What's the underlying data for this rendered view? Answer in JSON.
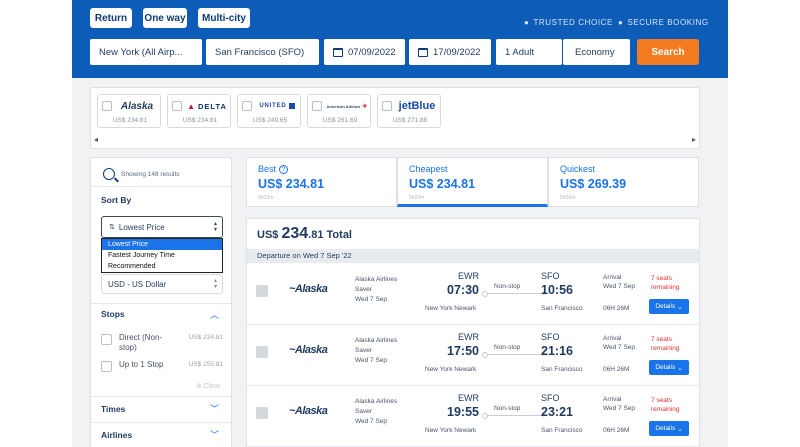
{
  "trip_types": {
    "return": "Return",
    "one_way": "One way",
    "multi_city": "Multi-city"
  },
  "trust": {
    "trusted": "TRUSTED CHOICE",
    "secure": "SECURE BOOKING"
  },
  "search": {
    "origin": "New York (All Airp...",
    "destination": "San Francisco (SFO)",
    "depart_date": "07/09/2022",
    "return_date": "17/09/2022",
    "passengers": "1 Adult",
    "cabin": "Economy",
    "button": "Search"
  },
  "airlines": [
    {
      "name": "Alaska",
      "price": "US$ 234.81"
    },
    {
      "name": "DELTA",
      "price": "US$ 234.81"
    },
    {
      "name": "UNITED",
      "price": "US$ 249.65"
    },
    {
      "name": "American Airlines",
      "price": "US$ 261.69"
    },
    {
      "name": "jetBlue",
      "price": "US$ 271.88"
    }
  ],
  "sidebar": {
    "showing": "Showing 148 results",
    "sort_title": "Sort By",
    "sort_selected": "Lowest Price",
    "sort_options": [
      "Lowest Price",
      "Fastest Journey Time",
      "Recommended"
    ],
    "currency": "USD - US Dollar",
    "stops_title": "Stops",
    "stops": [
      {
        "label": "Direct (Non-stop)",
        "price": "US$ 234.81"
      },
      {
        "label": "Up to 1 Stop",
        "price": "US$ 255.81"
      }
    ],
    "clear": "Clear",
    "times_title": "Times",
    "airlines_title": "Airlines"
  },
  "tabs": [
    {
      "label": "Best",
      "price": "US$ 234.81",
      "sub": "5h03m"
    },
    {
      "label": "Cheapest",
      "price": "US$ 234.81",
      "sub": "5h03m"
    },
    {
      "label": "Quickest",
      "price": "US$ 269.39",
      "sub": "5h00m"
    }
  ],
  "results": {
    "total_currency": "US$",
    "total_int": "234",
    "total_dec": ".81",
    "total_label": "Total",
    "departure": "Departure on Wed 7 Sep '22",
    "flights": [
      {
        "airline": "Alaska Airlines",
        "fare": "Saver",
        "date": "Wed 7 Sep",
        "from_code": "EWR",
        "from_time": "07:30",
        "from_city": "New York Newark",
        "stop": "Non-stop",
        "to_code": "SFO",
        "to_time": "10:56",
        "to_city": "San Francisco",
        "arrival_label": "Arrival",
        "arrival_date": "Wed 7 Sep",
        "duration": "06H 26M",
        "seats": "7 seats remaining",
        "details": "Details"
      },
      {
        "airline": "Alaska Airlines",
        "fare": "Saver",
        "date": "Wed 7 Sep",
        "from_code": "EWR",
        "from_time": "17:50",
        "from_city": "New York Newark",
        "stop": "Non-stop",
        "to_code": "SFO",
        "to_time": "21:16",
        "to_city": "San Francisco",
        "arrival_label": "Arrival",
        "arrival_date": "Wed 7 Sep",
        "duration": "06H 26M",
        "seats": "7 seats remaining",
        "details": "Details"
      },
      {
        "airline": "Alaska Airlines",
        "fare": "Saver",
        "date": "Wed 7 Sep",
        "from_code": "EWR",
        "from_time": "19:55",
        "from_city": "New York Newark",
        "stop": "Non-stop",
        "to_code": "SFO",
        "to_time": "23:21",
        "to_city": "San Francisco",
        "arrival_label": "Arrival",
        "arrival_date": "Wed 7 Sep",
        "duration": "06H 26M",
        "seats": "7 seats remaining",
        "details": "Details"
      }
    ]
  },
  "colors": {
    "brand": "#0d5db8",
    "accent": "#1a73e8",
    "search": "#f47b20",
    "alert": "#e03131"
  }
}
